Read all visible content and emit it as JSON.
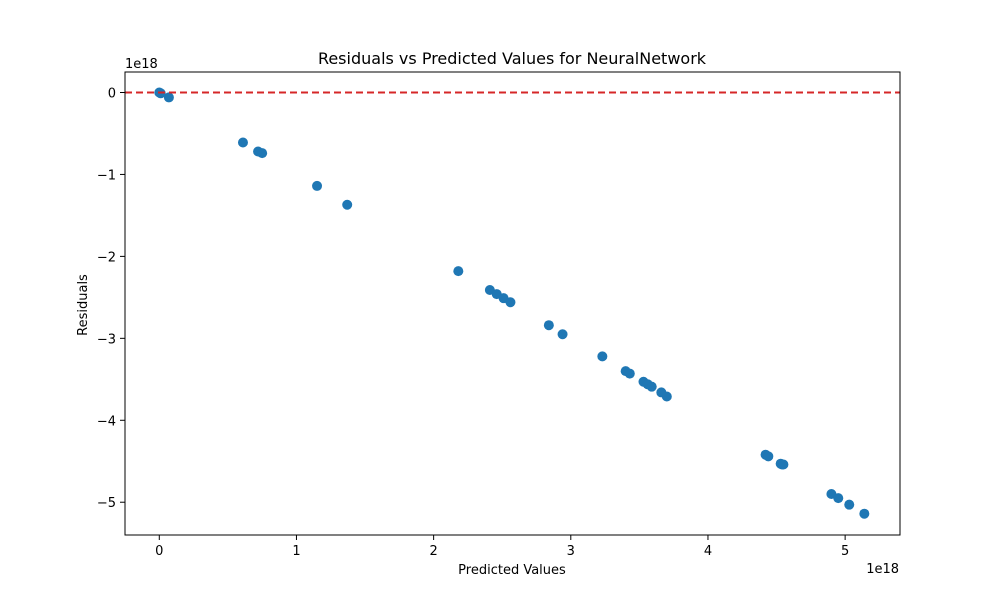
{
  "chart_data": {
    "type": "scatter",
    "title": "Residuals vs Predicted Values for NeuralNetwork",
    "xlabel": "Predicted Values",
    "ylabel": "Residuals",
    "x_offset_text": "1e18",
    "y_offset_text": "1e18",
    "xlim": [
      -0.25,
      5.4
    ],
    "ylim": [
      -5.4,
      0.25
    ],
    "xticks": [
      0,
      1,
      2,
      3,
      4,
      5
    ],
    "xtick_labels": [
      "0",
      "1",
      "2",
      "3",
      "4",
      "5"
    ],
    "yticks": [
      0,
      -1,
      -2,
      -3,
      -4,
      -5
    ],
    "ytick_labels": [
      "0",
      "−1",
      "−2",
      "−3",
      "−4",
      "−5"
    ],
    "point_color": "#1f77b4",
    "reference_line": {
      "y": 0,
      "color": "#d62728",
      "style": "dashed"
    },
    "grid": false,
    "points": [
      {
        "x": 0.0,
        "y": 0.0
      },
      {
        "x": 0.01,
        "y": -0.01
      },
      {
        "x": 0.07,
        "y": -0.06
      },
      {
        "x": 0.61,
        "y": -0.61
      },
      {
        "x": 0.72,
        "y": -0.72
      },
      {
        "x": 0.75,
        "y": -0.74
      },
      {
        "x": 1.15,
        "y": -1.14
      },
      {
        "x": 1.37,
        "y": -1.37
      },
      {
        "x": 2.18,
        "y": -2.18
      },
      {
        "x": 2.41,
        "y": -2.41
      },
      {
        "x": 2.46,
        "y": -2.46
      },
      {
        "x": 2.51,
        "y": -2.51
      },
      {
        "x": 2.56,
        "y": -2.56
      },
      {
        "x": 2.84,
        "y": -2.84
      },
      {
        "x": 2.94,
        "y": -2.95
      },
      {
        "x": 3.23,
        "y": -3.22
      },
      {
        "x": 3.4,
        "y": -3.4
      },
      {
        "x": 3.43,
        "y": -3.43
      },
      {
        "x": 3.53,
        "y": -3.53
      },
      {
        "x": 3.56,
        "y": -3.56
      },
      {
        "x": 3.59,
        "y": -3.59
      },
      {
        "x": 3.66,
        "y": -3.66
      },
      {
        "x": 3.7,
        "y": -3.71
      },
      {
        "x": 4.42,
        "y": -4.42
      },
      {
        "x": 4.44,
        "y": -4.44
      },
      {
        "x": 4.53,
        "y": -4.53
      },
      {
        "x": 4.54,
        "y": -4.54
      },
      {
        "x": 4.55,
        "y": -4.54
      },
      {
        "x": 4.9,
        "y": -4.9
      },
      {
        "x": 4.95,
        "y": -4.95
      },
      {
        "x": 5.03,
        "y": -5.03
      },
      {
        "x": 5.14,
        "y": -5.14
      }
    ]
  }
}
